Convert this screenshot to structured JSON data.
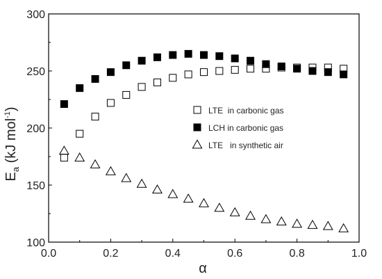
{
  "chart_data": {
    "type": "scatter",
    "title": "",
    "xlabel": "α",
    "ylabel_main": "E",
    "ylabel_sub": "a",
    "ylabel_rest": " (kJ mol",
    "ylabel_sup": "-1",
    "ylabel_close": ")",
    "xlim": [
      0.0,
      1.0
    ],
    "ylim": [
      100,
      300
    ],
    "xticks": [
      0.0,
      0.2,
      0.4,
      0.6,
      0.8,
      1.0
    ],
    "xtick_labels": [
      "0.0",
      "0.2",
      "0.4",
      "0.6",
      "0.8",
      "1.0"
    ],
    "yticks": [
      100,
      150,
      200,
      250,
      300
    ],
    "ytick_labels": [
      "100",
      "150",
      "200",
      "250",
      "300"
    ],
    "grid": false,
    "legend_position": "center-right",
    "series": [
      {
        "name": "LTE  in carbonic gas",
        "legend_label": "LTE  in carbonic gas",
        "marker": "open-square",
        "x": [
          0.05,
          0.1,
          0.15,
          0.2,
          0.25,
          0.3,
          0.35,
          0.4,
          0.45,
          0.5,
          0.55,
          0.6,
          0.65,
          0.7,
          0.75,
          0.8,
          0.85,
          0.9,
          0.95
        ],
        "y": [
          174,
          195,
          210,
          222,
          229,
          236,
          240,
          244,
          247,
          249,
          250,
          251,
          252,
          252,
          253,
          253,
          253,
          253,
          252
        ]
      },
      {
        "name": "LCH in carbonic gas",
        "legend_label": "LCH in carbonic gas",
        "marker": "filled-square",
        "x": [
          0.05,
          0.1,
          0.15,
          0.2,
          0.25,
          0.3,
          0.35,
          0.4,
          0.45,
          0.5,
          0.55,
          0.6,
          0.65,
          0.7,
          0.75,
          0.8,
          0.85,
          0.9,
          0.95
        ],
        "y": [
          221,
          235,
          243,
          249,
          255,
          259,
          262,
          264,
          265,
          264,
          263,
          261,
          259,
          256,
          254,
          252,
          250,
          249,
          247
        ]
      },
      {
        "name": "LTE  in synthetic air",
        "legend_label": "LTE   in synthetic air",
        "marker": "open-triangle",
        "x": [
          0.05,
          0.1,
          0.15,
          0.2,
          0.25,
          0.3,
          0.35,
          0.4,
          0.45,
          0.5,
          0.55,
          0.6,
          0.65,
          0.7,
          0.75,
          0.8,
          0.85,
          0.9,
          0.95
        ],
        "y": [
          180,
          174,
          168,
          162,
          156,
          151,
          146,
          142,
          138,
          134,
          130,
          126,
          123,
          120,
          118,
          116,
          115,
          114,
          112
        ]
      }
    ],
    "colors": {
      "marker": "#000000",
      "axis": "#000000"
    }
  }
}
